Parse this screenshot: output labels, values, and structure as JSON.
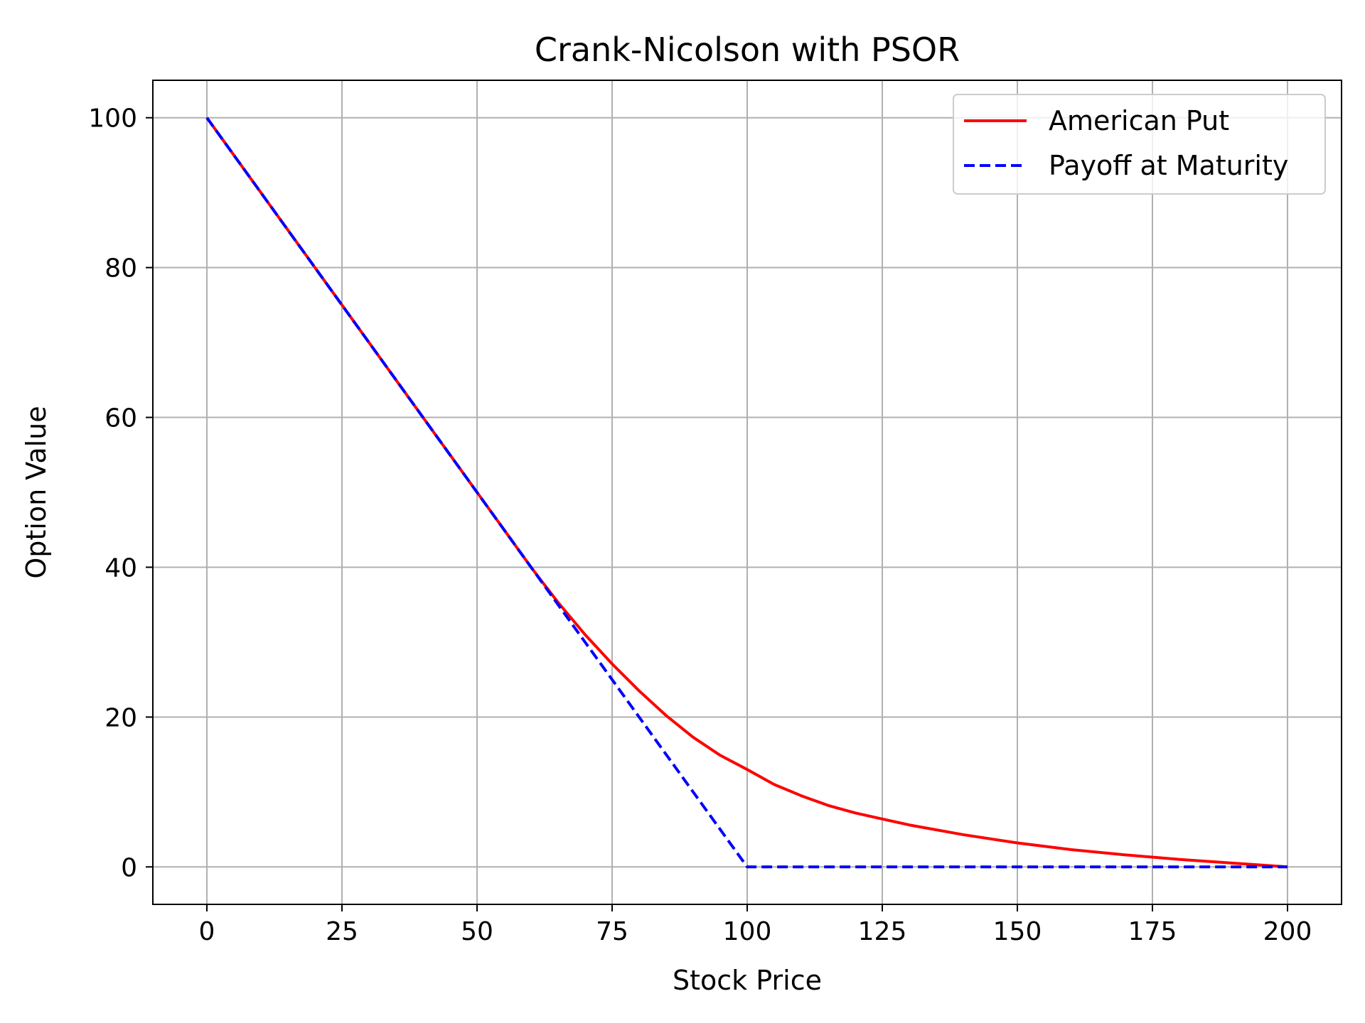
{
  "chart_data": {
    "type": "line",
    "title": "Crank-Nicolson with PSOR",
    "xlabel": "Stock Price",
    "ylabel": "Option Value",
    "xlim": [
      -10,
      210
    ],
    "ylim": [
      -5,
      105
    ],
    "xticks": [
      0,
      25,
      50,
      75,
      100,
      125,
      150,
      175,
      200
    ],
    "yticks": [
      0,
      20,
      40,
      60,
      80,
      100
    ],
    "grid": true,
    "legend_position": "top-right",
    "series": [
      {
        "name": "American Put",
        "color": "#ff0000",
        "style": "solid",
        "x": [
          0,
          10,
          20,
          30,
          40,
          50,
          55,
          60,
          62,
          65,
          70,
          75,
          80,
          85,
          90,
          95,
          100,
          105,
          110,
          115,
          120,
          125,
          130,
          140,
          150,
          160,
          170,
          180,
          190,
          200
        ],
        "y": [
          100,
          90,
          80,
          70,
          60,
          50,
          45,
          40,
          38.1,
          35.3,
          31.0,
          27.1,
          23.5,
          20.2,
          17.3,
          14.9,
          13.0,
          11.0,
          9.5,
          8.2,
          7.2,
          6.4,
          5.6,
          4.3,
          3.2,
          2.3,
          1.6,
          1.0,
          0.5,
          0
        ]
      },
      {
        "name": "Payoff at Maturity",
        "color": "#0000ff",
        "style": "dashed",
        "x": [
          0,
          100,
          200
        ],
        "y": [
          100,
          0,
          0
        ]
      }
    ]
  }
}
